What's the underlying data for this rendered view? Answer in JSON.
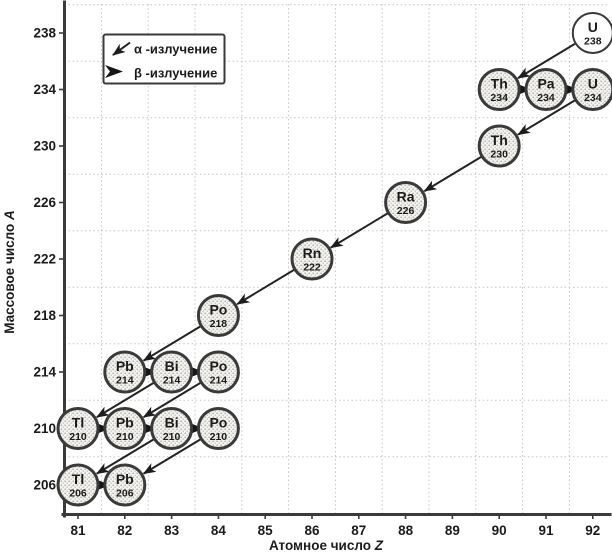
{
  "chart_data": {
    "type": "scatter",
    "description_visible": "",
    "xlabel": {
      "text": "Атомное число",
      "var": "Z"
    },
    "ylabel": {
      "text": "Массовое число",
      "var": "A"
    },
    "x_ticks": [
      81,
      82,
      83,
      84,
      85,
      86,
      87,
      88,
      89,
      90,
      91,
      92
    ],
    "y_ticks": [
      206,
      210,
      214,
      218,
      222,
      226,
      230,
      234,
      238
    ],
    "xlim": [
      80.7,
      92.4
    ],
    "ylim": [
      204,
      240
    ],
    "grid": "dotted; vertical lines midway between Z ticks, horizontal lines midway between A ticks",
    "legend": {
      "position": "top-left",
      "alpha_label": "α -излучение",
      "beta_label": "β -излучение"
    },
    "nuclides": [
      {
        "id": "U-238",
        "symbol": "U",
        "mass": "238",
        "z": 92,
        "a": 238,
        "fill": "plain"
      },
      {
        "id": "Th-234",
        "symbol": "Th",
        "mass": "234",
        "z": 90,
        "a": 234,
        "fill": "stipple"
      },
      {
        "id": "Pa-234",
        "symbol": "Pa",
        "mass": "234",
        "z": 91,
        "a": 234,
        "fill": "stipple"
      },
      {
        "id": "U-234",
        "symbol": "U",
        "mass": "234",
        "z": 92,
        "a": 234,
        "fill": "stipple"
      },
      {
        "id": "Th-230",
        "symbol": "Th",
        "mass": "230",
        "z": 90,
        "a": 230,
        "fill": "stipple"
      },
      {
        "id": "Ra-226",
        "symbol": "Ra",
        "mass": "226",
        "z": 88,
        "a": 226,
        "fill": "stipple"
      },
      {
        "id": "Rn-222",
        "symbol": "Rn",
        "mass": "222",
        "z": 86,
        "a": 222,
        "fill": "stipple"
      },
      {
        "id": "Po-218",
        "symbol": "Po",
        "mass": "218",
        "z": 84,
        "a": 218,
        "fill": "stipple"
      },
      {
        "id": "Pb-214",
        "symbol": "Pb",
        "mass": "214",
        "z": 82,
        "a": 214,
        "fill": "stipple"
      },
      {
        "id": "Bi-214",
        "symbol": "Bi",
        "mass": "214",
        "z": 83,
        "a": 214,
        "fill": "stipple"
      },
      {
        "id": "Po-214",
        "symbol": "Po",
        "mass": "214",
        "z": 84,
        "a": 214,
        "fill": "stipple"
      },
      {
        "id": "Tl-210",
        "symbol": "Tl",
        "mass": "210",
        "z": 81,
        "a": 210,
        "fill": "stipple"
      },
      {
        "id": "Pb-210",
        "symbol": "Pb",
        "mass": "210",
        "z": 82,
        "a": 210,
        "fill": "stipple"
      },
      {
        "id": "Bi-210",
        "symbol": "Bi",
        "mass": "210",
        "z": 83,
        "a": 210,
        "fill": "stipple"
      },
      {
        "id": "Po-210",
        "symbol": "Po",
        "mass": "210",
        "z": 84,
        "a": 210,
        "fill": "stipple"
      },
      {
        "id": "Tl-206",
        "symbol": "Tl",
        "mass": "206",
        "z": 81,
        "a": 206,
        "fill": "stipple"
      },
      {
        "id": "Pb-206",
        "symbol": "Pb",
        "mass": "206",
        "z": 82,
        "a": 206,
        "fill": "stipple"
      }
    ],
    "alpha_decays": [
      [
        "U-238",
        "Th-234"
      ],
      [
        "U-234",
        "Th-230"
      ],
      [
        "Th-230",
        "Ra-226"
      ],
      [
        "Ra-226",
        "Rn-222"
      ],
      [
        "Rn-222",
        "Po-218"
      ],
      [
        "Po-218",
        "Pb-214"
      ],
      [
        "Bi-214",
        "Tl-210"
      ],
      [
        "Po-214",
        "Pb-210"
      ],
      [
        "Bi-210",
        "Tl-206"
      ],
      [
        "Po-210",
        "Pb-206"
      ]
    ],
    "beta_decays": [
      [
        "Th-234",
        "Pa-234"
      ],
      [
        "Pa-234",
        "U-234"
      ],
      [
        "Pb-214",
        "Bi-214"
      ],
      [
        "Bi-214",
        "Po-214"
      ],
      [
        "Tl-210",
        "Pb-210"
      ],
      [
        "Pb-210",
        "Bi-210"
      ],
      [
        "Bi-210",
        "Po-210"
      ],
      [
        "Tl-206",
        "Pb-206"
      ]
    ],
    "colors": {
      "ink": "#1b1b1b",
      "circle_stroke": "#3a3a3a",
      "grid": "#c3c3bd",
      "stipple_dot": "#a5a5a0",
      "stipple_bg": "#f3f2ee",
      "background": "#ffffff"
    }
  }
}
